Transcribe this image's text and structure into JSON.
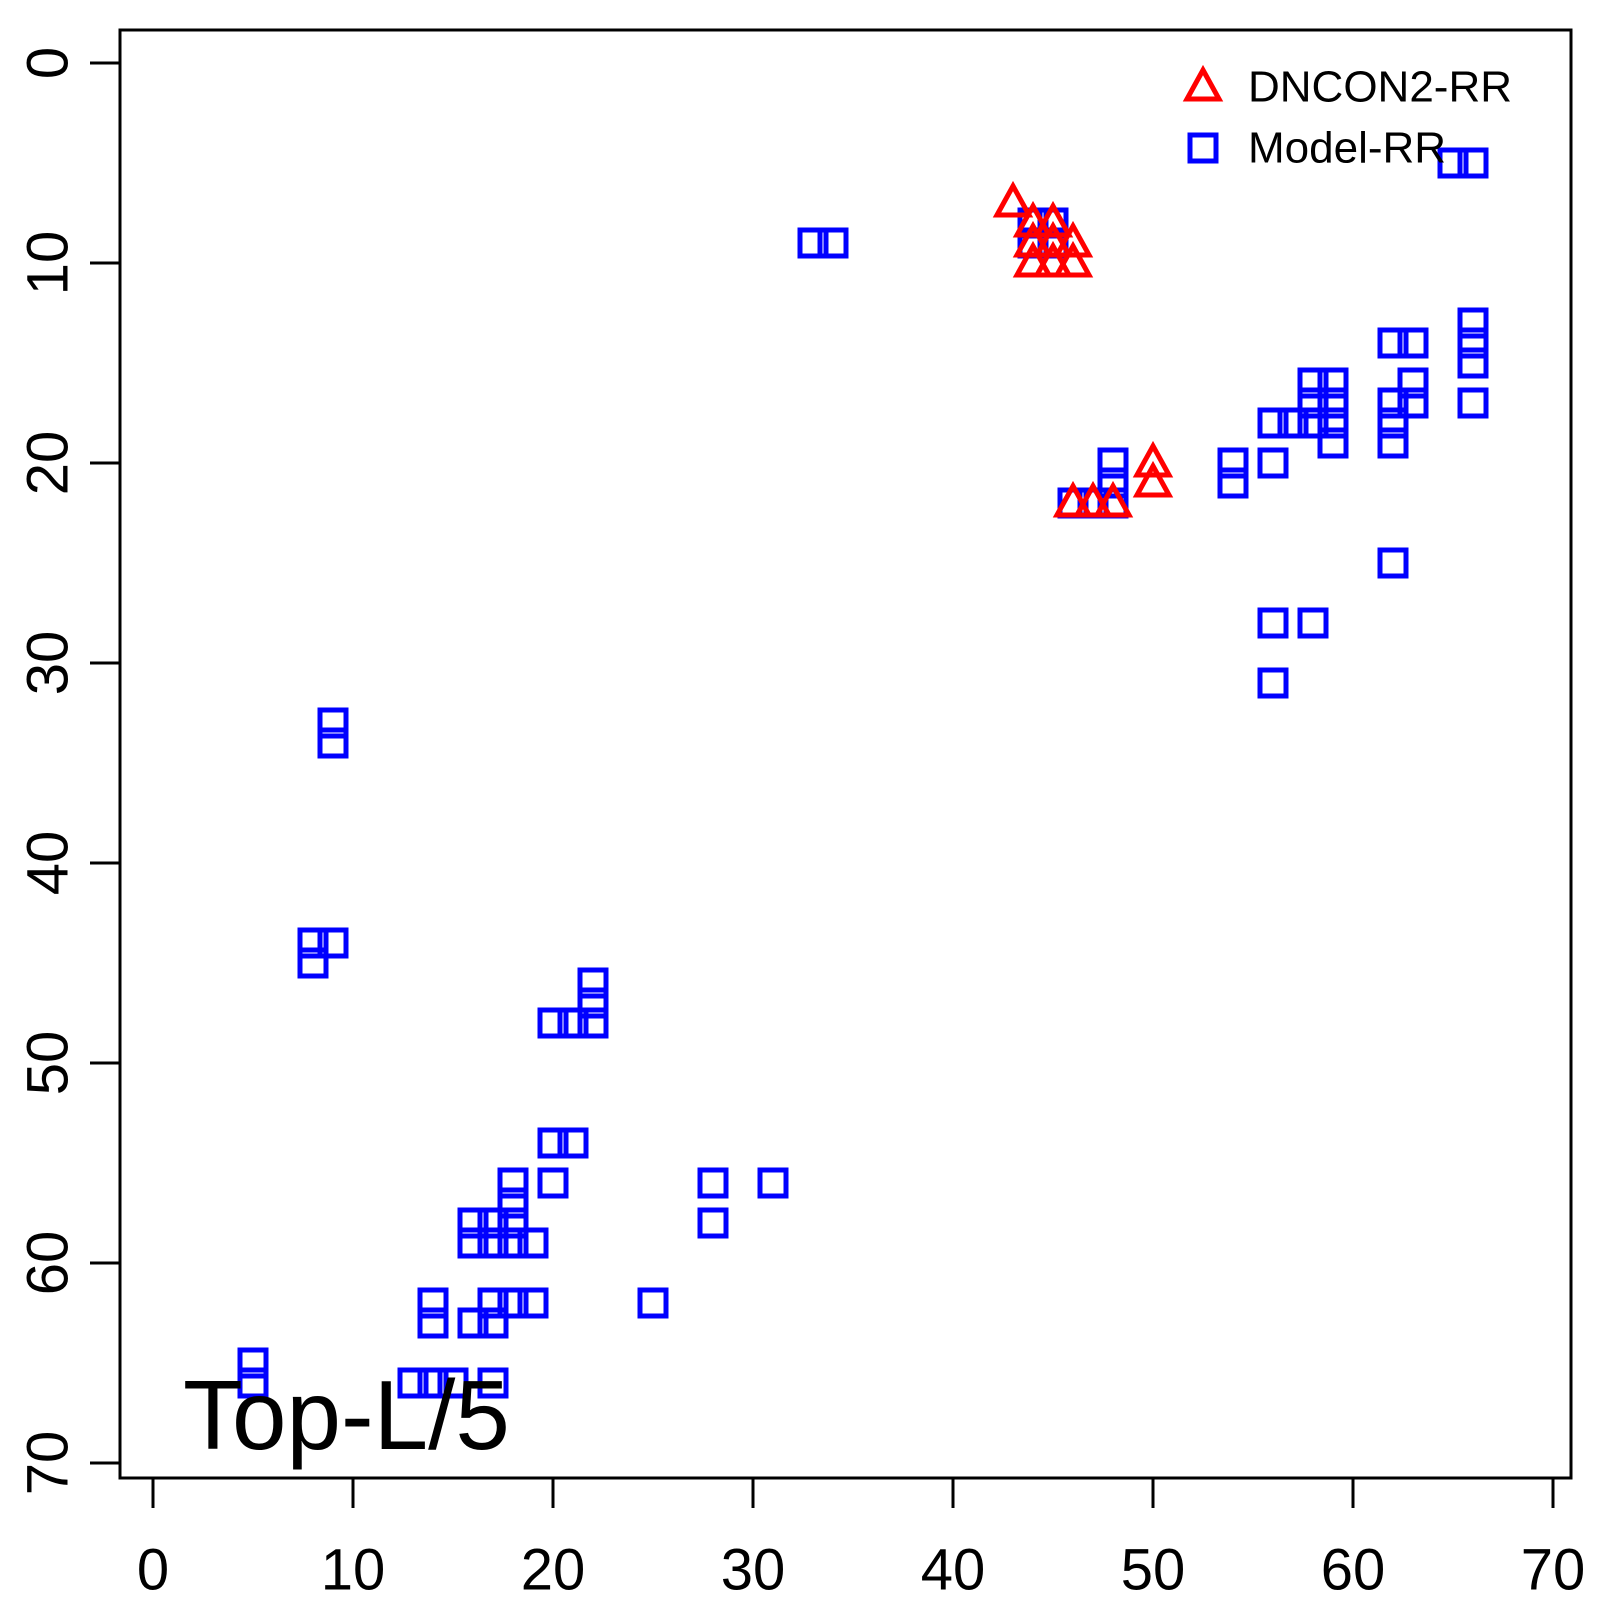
{
  "figure": {
    "background": "#FFFFFF"
  },
  "chart_data": {
    "type": "scatter",
    "title": "",
    "xlabel": "",
    "ylabel": "",
    "x_axis": {
      "min": 0,
      "max": 70,
      "ticks": [
        0,
        10,
        20,
        30,
        40,
        50,
        60,
        70
      ]
    },
    "y_axis": {
      "min": 0,
      "max": 70,
      "ticks": [
        0,
        10,
        20,
        30,
        40,
        50,
        60,
        70
      ],
      "reversed": true
    },
    "grid": false,
    "annotation": {
      "text": "Top-L/5",
      "x": 1.5,
      "y": 69.3
    },
    "legend": {
      "position": "top-right",
      "box": false,
      "entries": [
        {
          "label": "DNCON2-RR",
          "marker": "open-triangle",
          "color": "#FF0000"
        },
        {
          "label": "Model-RR",
          "marker": "open-square",
          "color": "#0000FF"
        }
      ]
    },
    "series": [
      {
        "name": "Model-RR",
        "marker": "square",
        "color": "#0000FF",
        "points": [
          [
            44,
            8
          ],
          [
            45,
            8
          ],
          [
            44,
            9
          ],
          [
            45,
            9
          ],
          [
            33,
            9
          ],
          [
            34,
            9
          ],
          [
            65,
            5
          ],
          [
            66,
            5
          ],
          [
            48,
            20
          ],
          [
            48,
            21
          ],
          [
            46,
            22
          ],
          [
            47,
            22
          ],
          [
            48,
            22
          ],
          [
            54,
            20
          ],
          [
            54,
            21
          ],
          [
            56,
            20
          ],
          [
            56,
            18
          ],
          [
            57,
            18
          ],
          [
            58,
            18
          ],
          [
            59,
            18
          ],
          [
            58,
            16
          ],
          [
            59,
            16
          ],
          [
            58,
            17
          ],
          [
            59,
            17
          ],
          [
            59,
            19
          ],
          [
            62,
            14
          ],
          [
            63,
            14
          ],
          [
            63,
            16
          ],
          [
            62,
            17
          ],
          [
            63,
            17
          ],
          [
            62,
            18
          ],
          [
            62,
            19
          ],
          [
            66,
            13
          ],
          [
            66,
            14
          ],
          [
            66,
            15
          ],
          [
            66,
            17
          ],
          [
            62,
            25
          ],
          [
            56,
            28
          ],
          [
            58,
            28
          ],
          [
            56,
            31
          ],
          [
            9,
            33
          ],
          [
            9,
            34
          ],
          [
            8,
            44
          ],
          [
            9,
            44
          ],
          [
            8,
            45
          ],
          [
            22,
            46
          ],
          [
            22,
            47
          ],
          [
            20,
            48
          ],
          [
            21,
            48
          ],
          [
            22,
            48
          ],
          [
            20,
            54
          ],
          [
            21,
            54
          ],
          [
            20,
            56
          ],
          [
            28,
            56
          ],
          [
            31,
            56
          ],
          [
            28,
            58
          ],
          [
            18,
            56
          ],
          [
            18,
            57
          ],
          [
            16,
            58
          ],
          [
            17,
            58
          ],
          [
            18,
            58
          ],
          [
            16,
            59
          ],
          [
            17,
            59
          ],
          [
            18,
            59
          ],
          [
            19,
            59
          ],
          [
            14,
            62
          ],
          [
            17,
            62
          ],
          [
            18,
            62
          ],
          [
            19,
            62
          ],
          [
            25,
            62
          ],
          [
            14,
            63
          ],
          [
            16,
            63
          ],
          [
            17,
            63
          ],
          [
            5,
            65
          ],
          [
            5,
            66
          ],
          [
            13,
            66
          ],
          [
            14,
            66
          ],
          [
            15,
            66
          ],
          [
            17,
            66
          ]
        ]
      },
      {
        "name": "DNCON2-RR",
        "marker": "triangle",
        "color": "#FF0000",
        "points": [
          [
            43,
            7
          ],
          [
            44,
            8
          ],
          [
            45,
            8
          ],
          [
            44,
            9
          ],
          [
            45,
            9
          ],
          [
            46,
            9
          ],
          [
            44,
            10
          ],
          [
            45,
            10
          ],
          [
            46,
            10
          ],
          [
            50,
            20
          ],
          [
            50,
            21
          ],
          [
            46,
            22
          ],
          [
            47,
            22
          ],
          [
            48,
            22
          ]
        ]
      }
    ]
  }
}
